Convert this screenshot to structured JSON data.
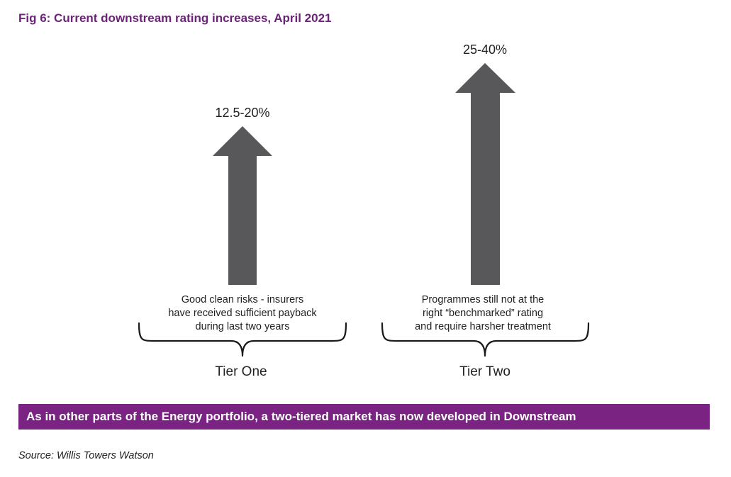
{
  "figure": {
    "title": "Fig 6: Current downstream rating increases, April 2021"
  },
  "tiers": [
    {
      "range": "12.5-20%",
      "description": [
        "Good clean risks - insurers",
        "have received sufficient payback",
        "during last two years"
      ],
      "label": "Tier One"
    },
    {
      "range": "25-40%",
      "description": [
        "Programmes still not at the",
        "right “benchmarked” rating",
        "and require harsher treatment"
      ],
      "label": "Tier Two"
    }
  ],
  "banner": {
    "text": "As in other parts of the Energy portfolio, a two-tiered market has now developed in Downstream"
  },
  "source": {
    "text": "Source: Willis Towers Watson"
  },
  "colors": {
    "title": "#6b2478",
    "banner": "#7b2383",
    "arrow": "#58585a",
    "brace": "#1a1a1a"
  },
  "icons": [
    "up-arrow-icon",
    "curly-brace-icon"
  ]
}
